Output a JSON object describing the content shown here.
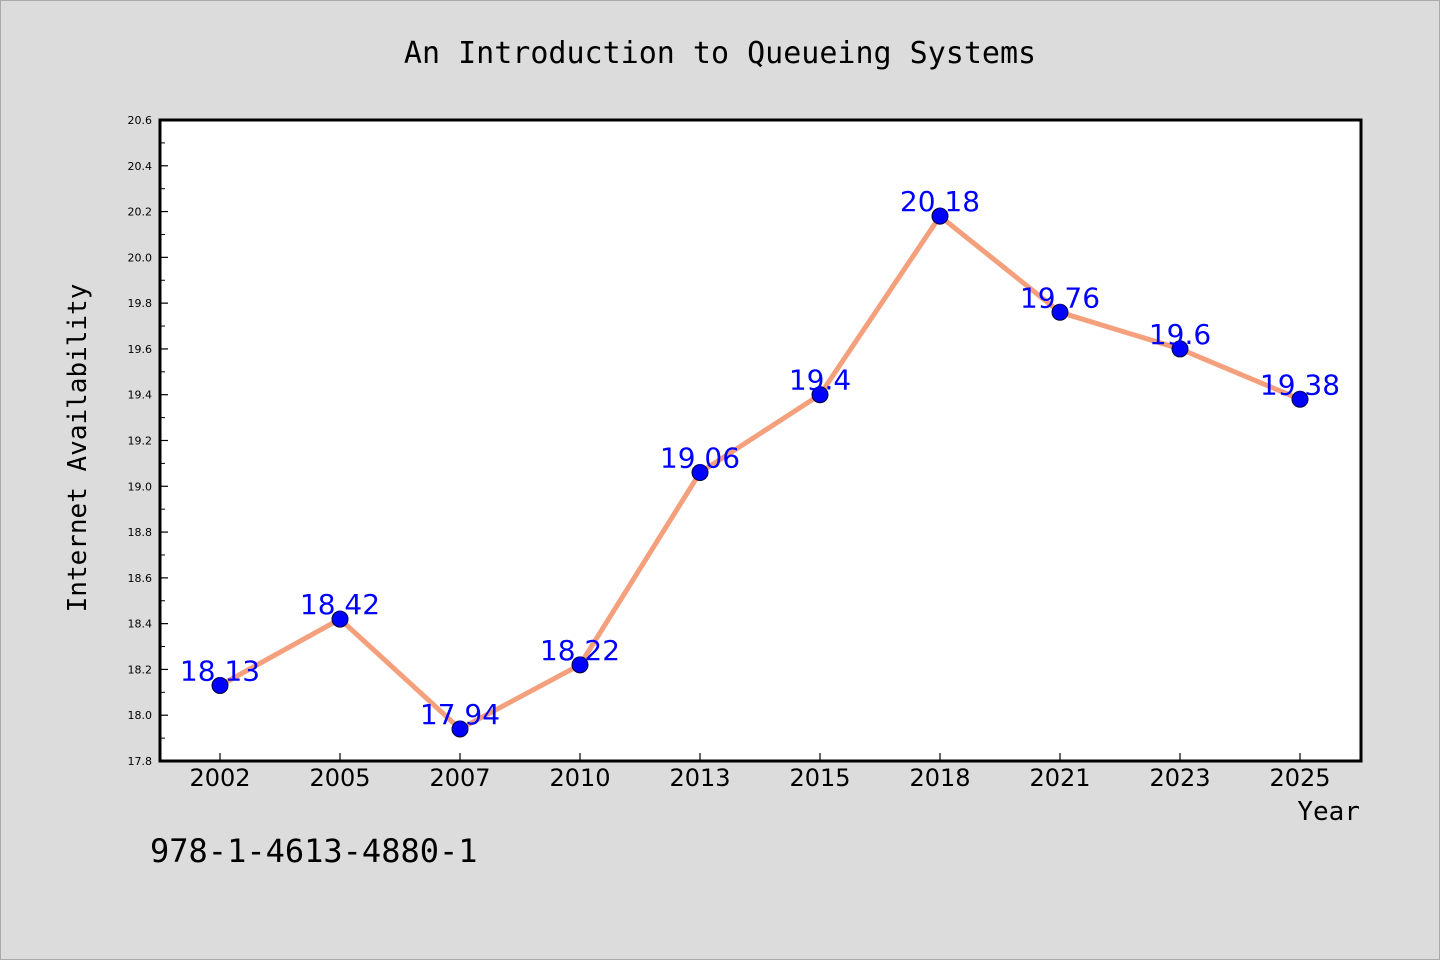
{
  "footnote": "978-1-4613-4880-1",
  "colors": {
    "background": "#dcdcdc",
    "plot_background": "#ffffff",
    "line": "#f4a07c",
    "marker": "#0000ff",
    "data_label": "#0000ff"
  },
  "chart_data": {
    "type": "line",
    "title": "An Introduction to Queueing Systems",
    "xlabel": "Year",
    "ylabel": "Internet Availability",
    "categories": [
      "2002",
      "2005",
      "2007",
      "2010",
      "2013",
      "2015",
      "2018",
      "2021",
      "2023",
      "2025"
    ],
    "series": [
      {
        "values": [
          18.13,
          18.42,
          17.94,
          18.22,
          19.06,
          19.4,
          20.18,
          19.76,
          19.6,
          19.38
        ],
        "labels": [
          "18.13",
          "18.42",
          "17.94",
          "18.22",
          "19.06",
          "19.4",
          "20.18",
          "19.76",
          "19.6",
          "19.38"
        ]
      }
    ],
    "ylim": [
      17.8,
      20.6
    ],
    "yticks": [
      "17.8",
      "18.0",
      "18.2",
      "18.4",
      "18.6",
      "18.8",
      "19.0",
      "19.2",
      "19.4",
      "19.6",
      "19.8",
      "20.0",
      "20.2",
      "20.4",
      "20.6"
    ],
    "grid": false,
    "legend": "none",
    "markers": "circle"
  }
}
